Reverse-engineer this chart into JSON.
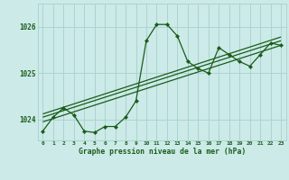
{
  "title": "Graphe pression niveau de la mer (hPa)",
  "bg_color": "#cceae8",
  "grid_color": "#aad4d0",
  "line_color": "#1a5c1a",
  "x_labels": [
    "0",
    "1",
    "2",
    "3",
    "4",
    "5",
    "6",
    "7",
    "8",
    "9",
    "10",
    "11",
    "12",
    "13",
    "14",
    "15",
    "16",
    "17",
    "18",
    "19",
    "20",
    "21",
    "22",
    "23"
  ],
  "y_ticks": [
    1024,
    1025,
    1026
  ],
  "ylim": [
    1023.55,
    1026.5
  ],
  "xlim": [
    -0.5,
    23.5
  ],
  "main_series_x": [
    0,
    1,
    2,
    3,
    4,
    5,
    6,
    7,
    8,
    9,
    10,
    11,
    12,
    13,
    14,
    15,
    16,
    17,
    18,
    19,
    20,
    21,
    22,
    23
  ],
  "main_series_y": [
    1023.75,
    1024.05,
    1024.25,
    1024.1,
    1023.75,
    1023.72,
    1023.85,
    1023.85,
    1024.05,
    1024.4,
    1025.7,
    1026.05,
    1026.05,
    1025.8,
    1025.25,
    1025.1,
    1025.0,
    1025.55,
    1025.4,
    1025.25,
    1025.15,
    1025.4,
    1025.65,
    1025.6
  ],
  "trend1_x": [
    0,
    23
  ],
  "trend1_y": [
    1023.95,
    1025.6
  ],
  "trend2_x": [
    0,
    23
  ],
  "trend2_y": [
    1024.05,
    1025.7
  ],
  "trend3_x": [
    0,
    23
  ],
  "trend3_y": [
    1024.12,
    1025.78
  ]
}
